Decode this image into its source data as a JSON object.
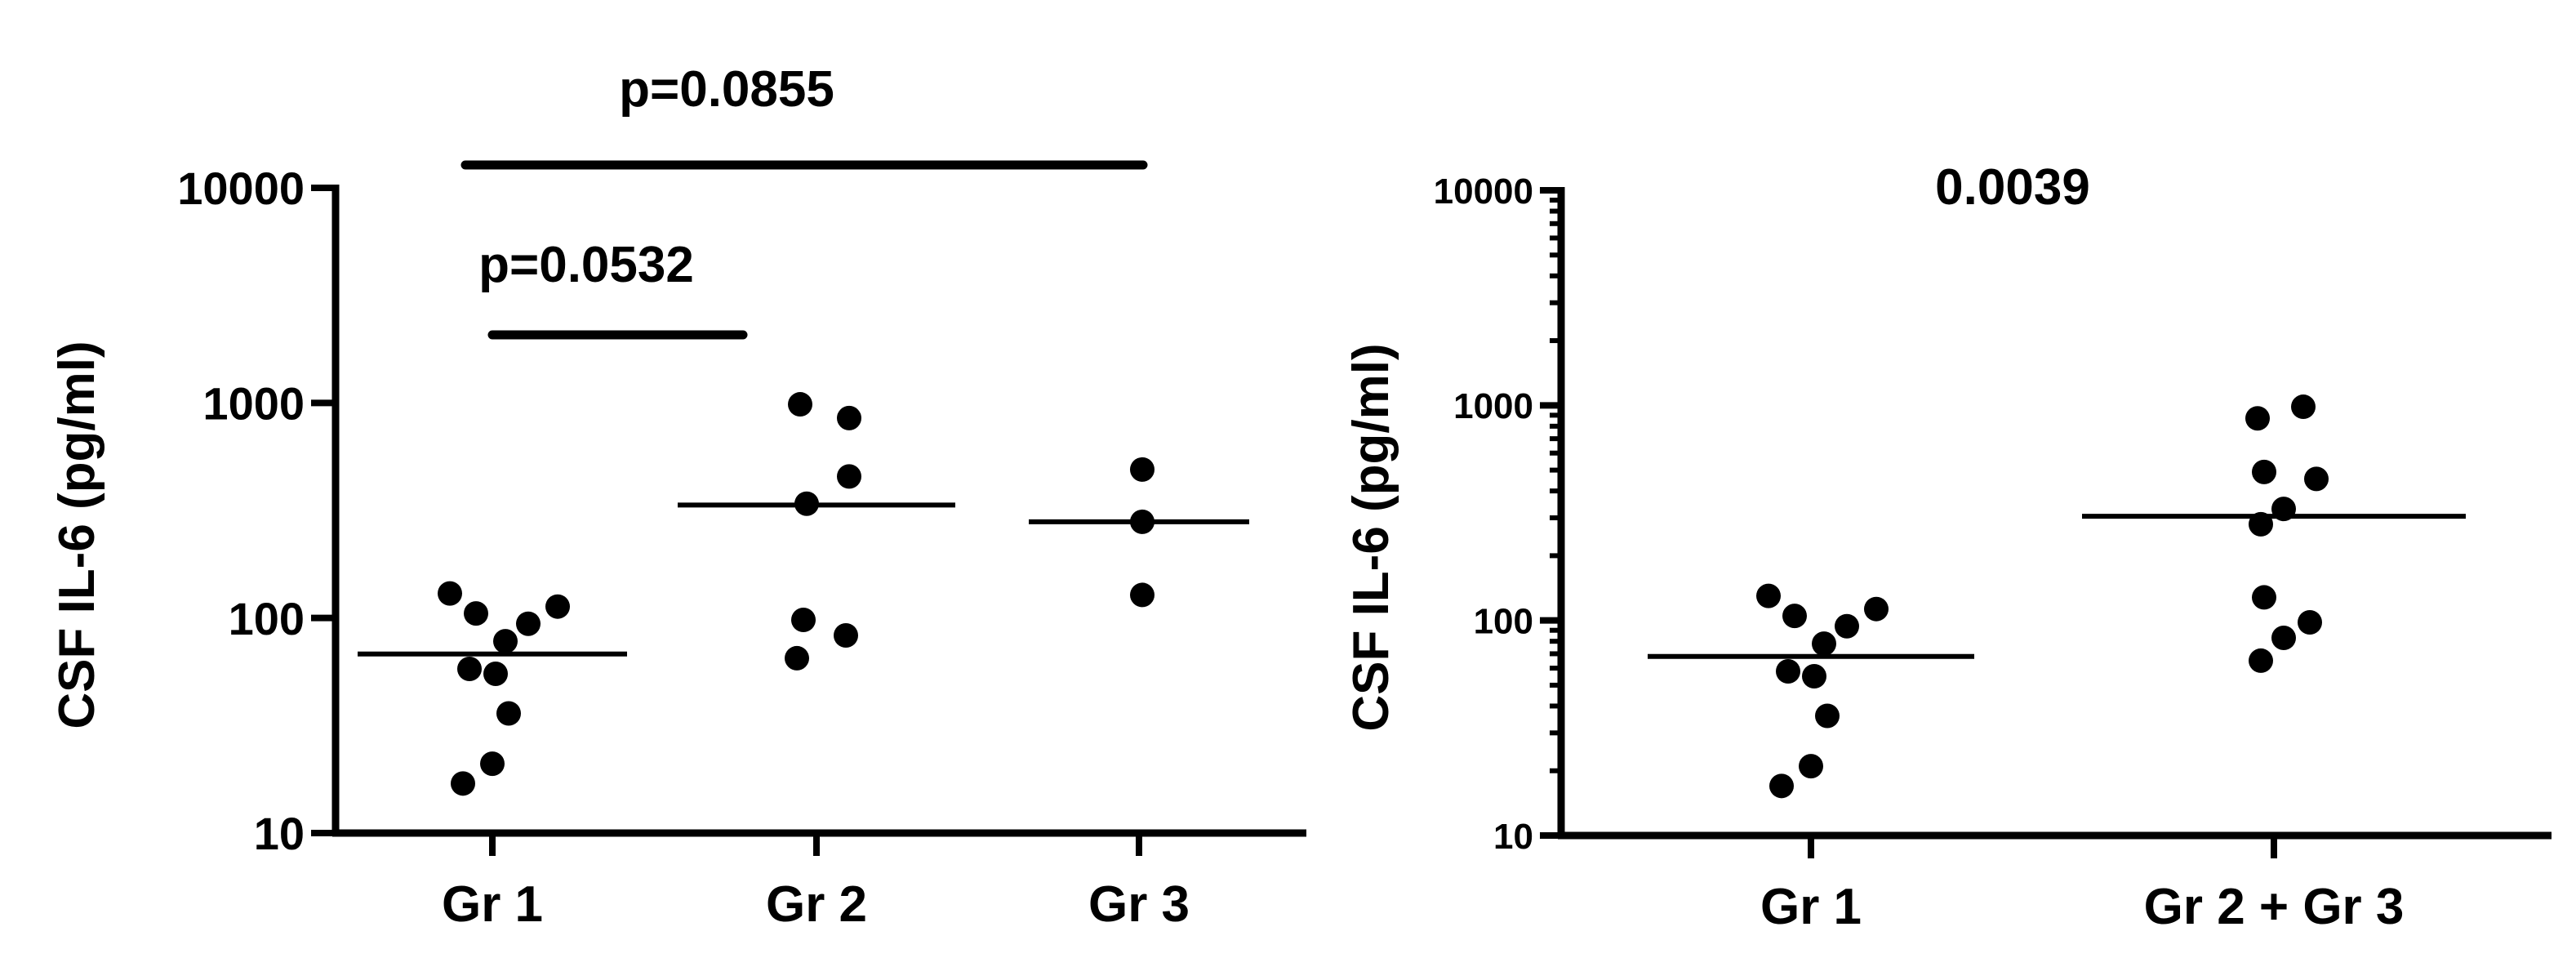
{
  "chart_data": [
    {
      "type": "scatter",
      "ylabel": "CSF IL-6 (pg/ml)",
      "yscale": "log",
      "ylim": [
        10,
        10000
      ],
      "yticks": [
        "10",
        "100",
        "1000",
        "10000"
      ],
      "minor_ticks": false,
      "categories": [
        "Gr 1",
        "Gr 2",
        "Gr 3"
      ],
      "groups": [
        {
          "category": "Gr 1",
          "median": 68,
          "points": [
            [
              -0.13,
              130
            ],
            [
              -0.05,
              105
            ],
            [
              0.04,
              78
            ],
            [
              0.11,
              94
            ],
            [
              0.2,
              113
            ],
            [
              -0.07,
              58
            ],
            [
              0.01,
              55
            ],
            [
              0.05,
              36
            ],
            [
              0.0,
              21
            ],
            [
              -0.09,
              17
            ]
          ]
        },
        {
          "category": "Gr 2",
          "median": 335,
          "points": [
            [
              -0.05,
              985
            ],
            [
              0.1,
              850
            ],
            [
              0.1,
              455
            ],
            [
              -0.03,
              340
            ],
            [
              -0.04,
              98
            ],
            [
              0.09,
              83
            ],
            [
              -0.06,
              65
            ]
          ]
        },
        {
          "category": "Gr 3",
          "median": 280,
          "points": [
            [
              0.01,
              490
            ],
            [
              0.01,
              280
            ],
            [
              0.01,
              128
            ]
          ]
        }
      ],
      "annotations": [
        {
          "text": "p=0.0532",
          "from": "Gr 1",
          "to": "Gr 2"
        },
        {
          "text": "p=0.0855",
          "from": "Gr 1",
          "to": "Gr 3"
        }
      ]
    },
    {
      "type": "scatter",
      "ylabel": "CSF IL-6 (pg/ml)",
      "yscale": "log",
      "ylim": [
        10,
        10000
      ],
      "yticks": [
        "10",
        "100",
        "1000",
        "10000"
      ],
      "minor_ticks": true,
      "categories": [
        "Gr 1",
        "Gr 2 + Gr 3"
      ],
      "groups": [
        {
          "category": "Gr 1",
          "median": 68,
          "points": [
            [
              -0.13,
              130
            ],
            [
              -0.05,
              105
            ],
            [
              0.04,
              78
            ],
            [
              0.11,
              94
            ],
            [
              0.2,
              113
            ],
            [
              -0.07,
              58
            ],
            [
              0.01,
              55
            ],
            [
              0.05,
              36
            ],
            [
              0.0,
              21
            ],
            [
              -0.09,
              17
            ]
          ]
        },
        {
          "category": "Gr 2 + Gr 3",
          "median": 305,
          "points": [
            [
              -0.05,
              870
            ],
            [
              0.09,
              985
            ],
            [
              0.13,
              455
            ],
            [
              -0.03,
              490
            ],
            [
              0.03,
              330
            ],
            [
              -0.04,
              280
            ],
            [
              -0.03,
              128
            ],
            [
              0.11,
              98
            ],
            [
              0.03,
              83
            ],
            [
              -0.04,
              65
            ]
          ]
        }
      ],
      "annotations": [
        {
          "text": "0.0039",
          "from": "Gr 1",
          "to": "Gr 2 + Gr 3",
          "bar": false
        }
      ]
    }
  ]
}
